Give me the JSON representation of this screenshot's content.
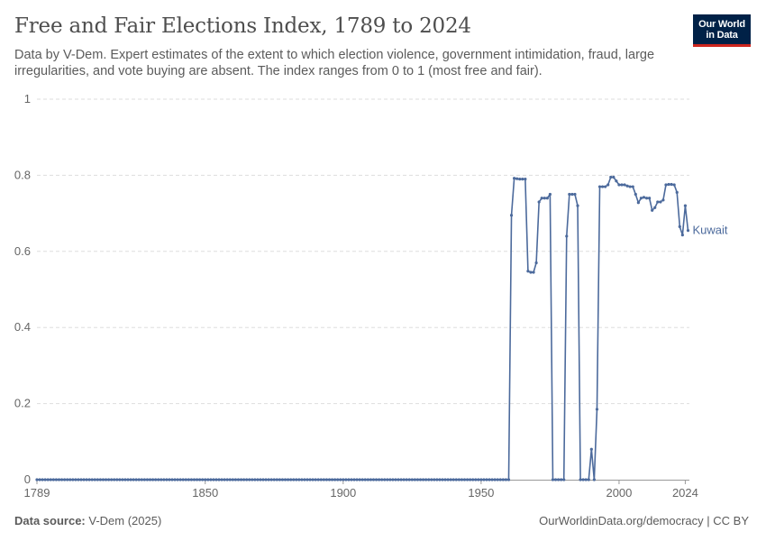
{
  "header": {
    "title": "Free and Fair Elections Index, 1789 to 2024",
    "subtitle": "Data by V-Dem. Expert estimates of the extent to which election violence, government intimidation, fraud, large irregularities, and vote buying are absent. The index ranges from 0 to 1 (most free and fair).",
    "logo_line1": "Our World",
    "logo_line2": "in Data"
  },
  "footer": {
    "source_label": "Data source:",
    "source_value": "V-Dem (2025)",
    "url_license": "OurWorldinData.org/democracy | CC BY"
  },
  "colors": {
    "series": "#4c6a9c",
    "grid": "#dddddd",
    "axis": "#666666",
    "logo_bg": "#002147",
    "logo_accent": "#ce261e"
  },
  "chart_data": {
    "type": "line",
    "title": "Free and Fair Elections Index, 1789 to 2024",
    "xlabel": "",
    "ylabel": "",
    "xlim": [
      1789,
      2024
    ],
    "ylim": [
      0,
      1
    ],
    "x_ticks": [
      1789,
      1850,
      1900,
      1950,
      2000,
      2024
    ],
    "y_ticks": [
      0,
      0.2,
      0.4,
      0.6,
      0.8,
      1
    ],
    "y_tick_labels": [
      "0",
      "0.2",
      "0.4",
      "0.6",
      "0.8",
      "1"
    ],
    "grid": true,
    "legend": "inline-right",
    "series": [
      {
        "name": "Kuwait",
        "zero_start": 1789,
        "zero_end": 1960,
        "points": [
          [
            1961,
            0.695
          ],
          [
            1962,
            0.792
          ],
          [
            1963,
            0.791
          ],
          [
            1964,
            0.79
          ],
          [
            1965,
            0.79
          ],
          [
            1966,
            0.79
          ],
          [
            1967,
            0.548
          ],
          [
            1968,
            0.545
          ],
          [
            1969,
            0.545
          ],
          [
            1970,
            0.57
          ],
          [
            1971,
            0.73
          ],
          [
            1972,
            0.74
          ],
          [
            1973,
            0.74
          ],
          [
            1974,
            0.74
          ],
          [
            1975,
            0.75
          ],
          [
            1976,
            0.0
          ],
          [
            1977,
            0.0
          ],
          [
            1978,
            0.0
          ],
          [
            1979,
            0.0
          ],
          [
            1980,
            0.0
          ],
          [
            1981,
            0.64
          ],
          [
            1982,
            0.75
          ],
          [
            1983,
            0.75
          ],
          [
            1984,
            0.75
          ],
          [
            1985,
            0.72
          ],
          [
            1986,
            0.0
          ],
          [
            1987,
            0.0
          ],
          [
            1988,
            0.0
          ],
          [
            1989,
            0.0
          ],
          [
            1990,
            0.08
          ],
          [
            1991,
            0.0
          ],
          [
            1992,
            0.185
          ],
          [
            1993,
            0.77
          ],
          [
            1994,
            0.77
          ],
          [
            1995,
            0.77
          ],
          [
            1996,
            0.775
          ],
          [
            1997,
            0.795
          ],
          [
            1998,
            0.795
          ],
          [
            1999,
            0.785
          ],
          [
            2000,
            0.775
          ],
          [
            2001,
            0.775
          ],
          [
            2002,
            0.775
          ],
          [
            2003,
            0.772
          ],
          [
            2004,
            0.77
          ],
          [
            2005,
            0.77
          ],
          [
            2006,
            0.75
          ],
          [
            2007,
            0.728
          ],
          [
            2008,
            0.74
          ],
          [
            2009,
            0.742
          ],
          [
            2010,
            0.74
          ],
          [
            2011,
            0.74
          ],
          [
            2012,
            0.708
          ],
          [
            2013,
            0.715
          ],
          [
            2014,
            0.73
          ],
          [
            2015,
            0.73
          ],
          [
            2016,
            0.735
          ],
          [
            2017,
            0.775
          ],
          [
            2018,
            0.776
          ],
          [
            2019,
            0.776
          ],
          [
            2020,
            0.775
          ],
          [
            2021,
            0.755
          ],
          [
            2022,
            0.665
          ],
          [
            2023,
            0.643
          ],
          [
            2024,
            0.72
          ],
          [
            2025,
            0.655
          ]
        ]
      }
    ]
  }
}
